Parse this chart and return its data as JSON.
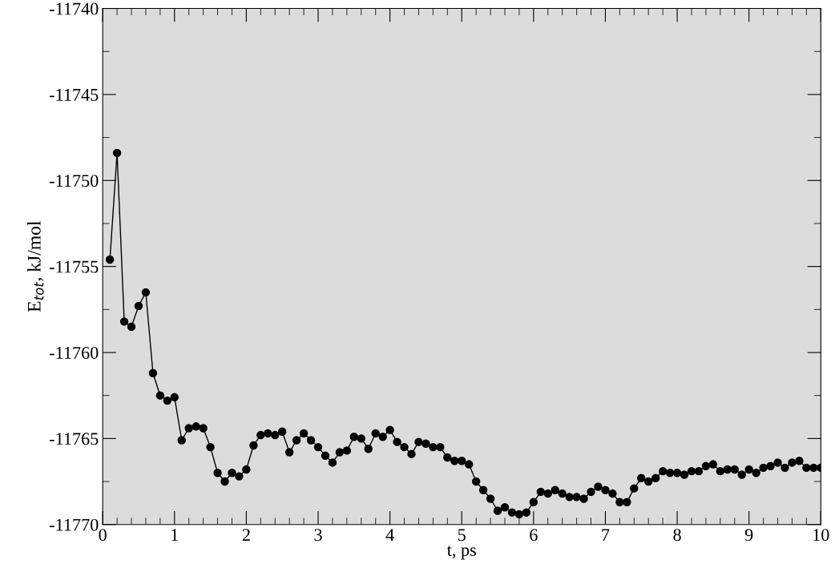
{
  "chart_data": {
    "type": "line",
    "xlabel": "t, ps",
    "ylabel": "E$_{tot}$, kJ/mol",
    "x": [
      0.1,
      0.2,
      0.3,
      0.4,
      0.5,
      0.6,
      0.7,
      0.8,
      0.9,
      1.0,
      1.1,
      1.2,
      1.3,
      1.4,
      1.5,
      1.6,
      1.7,
      1.8,
      1.9,
      2.0,
      2.1,
      2.2,
      2.3,
      2.4,
      2.5,
      2.6,
      2.7,
      2.8,
      2.9,
      3.0,
      3.1,
      3.2,
      3.3,
      3.4,
      3.5,
      3.6,
      3.7,
      3.8,
      3.9,
      4.0,
      4.1,
      4.2,
      4.3,
      4.4,
      4.5,
      4.6,
      4.7,
      4.8,
      4.9,
      5.0,
      5.1,
      5.2,
      5.3,
      5.4,
      5.5,
      5.6,
      5.7,
      5.8,
      5.9,
      6.0,
      6.1,
      6.2,
      6.3,
      6.4,
      6.5,
      6.6,
      6.7,
      6.8,
      6.9,
      7.0,
      7.1,
      7.2,
      7.3,
      7.4,
      7.5,
      7.6,
      7.7,
      7.8,
      7.9,
      8.0,
      8.1,
      8.2,
      8.3,
      8.4,
      8.5,
      8.6,
      8.7,
      8.8,
      8.9,
      9.0,
      9.1,
      9.2,
      9.3,
      9.4,
      9.5,
      9.6,
      9.7,
      9.8,
      9.9,
      10.0
    ],
    "series": [
      {
        "color": "#000000",
        "values": [
          -11754.6,
          -11748.4,
          -11758.2,
          -11758.5,
          -11757.3,
          -11756.5,
          -11761.2,
          -11762.5,
          -11762.8,
          -11762.6,
          -11765.1,
          -11764.4,
          -11764.3,
          -11764.4,
          -11765.5,
          -11767.0,
          -11767.5,
          -11767.0,
          -11767.2,
          -11766.8,
          -11765.4,
          -11764.8,
          -11764.7,
          -11764.8,
          -11764.6,
          -11765.8,
          -11765.1,
          -11764.7,
          -11765.1,
          -11765.5,
          -11766.0,
          -11766.4,
          -11765.8,
          -11765.7,
          -11764.9,
          -11765.0,
          -11765.6,
          -11764.7,
          -11764.9,
          -11764.5,
          -11765.2,
          -11765.5,
          -11765.9,
          -11765.2,
          -11765.3,
          -11765.5,
          -11765.5,
          -11766.1,
          -11766.3,
          -11766.3,
          -11766.5,
          -11767.5,
          -11768.0,
          -11768.5,
          -11769.2,
          -11769.0,
          -11769.3,
          -11769.4,
          -11769.3,
          -11768.7,
          -11768.1,
          -11768.2,
          -11768.0,
          -11768.2,
          -11768.4,
          -11768.4,
          -11768.5,
          -11768.1,
          -11767.8,
          -11768.0,
          -11768.2,
          -11768.7,
          -11768.7,
          -11767.9,
          -11767.3,
          -11767.5,
          -11767.3,
          -11766.9,
          -11767.0,
          -11767.0,
          -11767.1,
          -11766.9,
          -11766.9,
          -11766.6,
          -11766.5,
          -11766.9,
          -11766.8,
          -11766.8,
          -11767.1,
          -11766.8,
          -11767.0,
          -11766.7,
          -11766.6,
          -11766.4,
          -11766.7,
          -11766.4,
          -11766.3,
          -11766.7,
          -11766.7,
          -11766.7
        ]
      }
    ],
    "xlim": [
      0,
      10
    ],
    "ylim": [
      -11770,
      -11740
    ],
    "xticks": [
      0,
      {
        "value": 0.2,
        "label": null
      },
      {
        "value": 0.4,
        "label": null
      },
      {
        "value": 0.6,
        "label": null
      },
      {
        "value": 0.8,
        "label": null
      },
      1,
      {
        "value": 1.2,
        "label": null
      },
      {
        "value": 1.4,
        "label": null
      },
      {
        "value": 1.6,
        "label": null
      },
      {
        "value": 1.8,
        "label": null
      },
      2,
      {
        "value": 2.2,
        "label": null
      },
      {
        "value": 2.4,
        "label": null
      },
      {
        "value": 2.6,
        "label": null
      },
      {
        "value": 2.8,
        "label": null
      },
      3,
      {
        "value": 3.2,
        "label": null
      },
      {
        "value": 3.4,
        "label": null
      },
      {
        "value": 3.6,
        "label": null
      },
      {
        "value": 3.8,
        "label": null
      },
      4,
      {
        "value": 4.2,
        "label": null
      },
      {
        "value": 4.4,
        "label": null
      },
      {
        "value": 4.6,
        "label": null
      },
      {
        "value": 4.8,
        "label": null
      },
      5,
      {
        "value": 5.2,
        "label": null
      },
      {
        "value": 5.4,
        "label": null
      },
      {
        "value": 5.6,
        "label": null
      },
      {
        "value": 5.8,
        "label": null
      },
      6,
      {
        "value": 6.2,
        "label": null
      },
      {
        "value": 6.4,
        "label": null
      },
      {
        "value": 6.6,
        "label": null
      },
      {
        "value": 6.8,
        "label": null
      },
      7,
      {
        "value": 7.2,
        "label": null
      },
      {
        "value": 7.4,
        "label": null
      },
      {
        "value": 7.6,
        "label": null
      },
      {
        "value": 7.8,
        "label": null
      },
      8,
      {
        "value": 8.2,
        "label": null
      },
      {
        "value": 8.4,
        "label": null
      },
      {
        "value": 8.6,
        "label": null
      },
      {
        "value": 8.8,
        "label": null
      },
      9,
      {
        "value": 9.2,
        "label": null
      },
      {
        "value": 9.4,
        "label": null
      },
      {
        "value": 9.6,
        "label": null
      },
      {
        "value": 9.8,
        "label": null
      },
      10
    ],
    "yticks": [
      -11770,
      {
        "value": -11767.5,
        "label": null
      },
      -11765,
      {
        "value": -11762.5,
        "label": null
      },
      -11760,
      {
        "value": -11757.5,
        "label": null
      },
      -11755,
      {
        "value": -11752.5,
        "label": null
      },
      -11750,
      {
        "value": -11747.5,
        "label": null
      },
      -11745,
      {
        "value": -11742.5,
        "label": null
      },
      -11740
    ],
    "grid": false,
    "marker": "circle",
    "line_style": "solid"
  }
}
